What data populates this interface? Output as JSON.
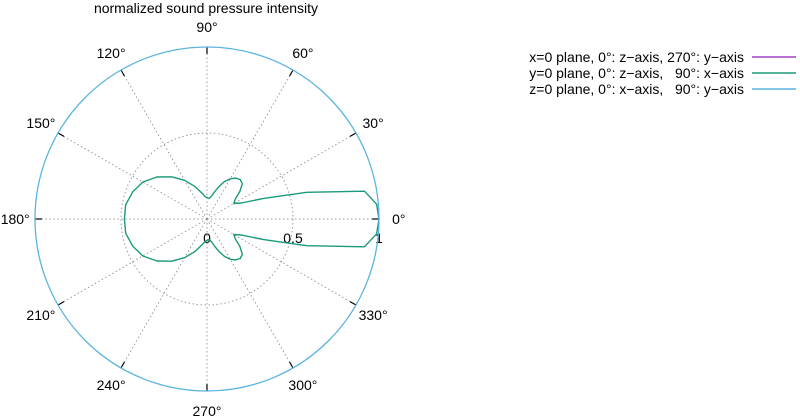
{
  "chart_data": {
    "type": "polar-line",
    "title": "normalized sound pressure intensity",
    "angle_unit": "degrees",
    "radial_range": [
      0,
      1
    ],
    "radial_ticks": [
      {
        "value": 0,
        "label": "0"
      },
      {
        "value": 0.5,
        "label": "0.5"
      },
      {
        "value": 1,
        "label": "1"
      }
    ],
    "angle_ticks": [
      {
        "angle": 0,
        "label": "0°"
      },
      {
        "angle": 30,
        "label": "30°"
      },
      {
        "angle": 60,
        "label": "60°"
      },
      {
        "angle": 90,
        "label": "90°"
      },
      {
        "angle": 120,
        "label": "120°"
      },
      {
        "angle": 150,
        "label": "150°"
      },
      {
        "angle": 180,
        "label": "180°"
      },
      {
        "angle": 210,
        "label": "210°"
      },
      {
        "angle": 240,
        "label": "240°"
      },
      {
        "angle": 270,
        "label": "270°"
      },
      {
        "angle": 300,
        "label": "300°"
      },
      {
        "angle": 330,
        "label": "330°"
      }
    ],
    "grid": true,
    "legend_position": "top-right",
    "series": [
      {
        "name": "x=0 plane, 0°: z−axis, 270°: y−axis",
        "color": "#a040c8",
        "visible_curve": false,
        "points": []
      },
      {
        "name": "y=0 plane, 0°: z−axis,   90°: x−axis",
        "color": "#1a9a7a",
        "visible_curve": true,
        "points": [
          {
            "angle": 0,
            "r": 1.0
          },
          {
            "angle": 5,
            "r": 0.99
          },
          {
            "angle": 10,
            "r": 0.93
          },
          {
            "angle": 15,
            "r": 0.6
          },
          {
            "angle": 20,
            "r": 0.35
          },
          {
            "angle": 25,
            "r": 0.22
          },
          {
            "angle": 30,
            "r": 0.18
          },
          {
            "angle": 35,
            "r": 0.2
          },
          {
            "angle": 40,
            "r": 0.25
          },
          {
            "angle": 45,
            "r": 0.29
          },
          {
            "angle": 50,
            "r": 0.3
          },
          {
            "angle": 55,
            "r": 0.29
          },
          {
            "angle": 60,
            "r": 0.27
          },
          {
            "angle": 65,
            "r": 0.24
          },
          {
            "angle": 70,
            "r": 0.2
          },
          {
            "angle": 75,
            "r": 0.16
          },
          {
            "angle": 80,
            "r": 0.13
          },
          {
            "angle": 85,
            "r": 0.12
          },
          {
            "angle": 90,
            "r": 0.125
          },
          {
            "angle": 95,
            "r": 0.13
          },
          {
            "angle": 100,
            "r": 0.15
          },
          {
            "angle": 110,
            "r": 0.2
          },
          {
            "angle": 120,
            "r": 0.26
          },
          {
            "angle": 130,
            "r": 0.32
          },
          {
            "angle": 140,
            "r": 0.38
          },
          {
            "angle": 150,
            "r": 0.43
          },
          {
            "angle": 160,
            "r": 0.46
          },
          {
            "angle": 170,
            "r": 0.48
          },
          {
            "angle": 180,
            "r": 0.48
          }
        ]
      },
      {
        "name": "z=0 plane, 0°: x−axis,   90°: y−axis",
        "color": "#5ab4e0",
        "visible_curve": true,
        "points": [
          {
            "angle": 0,
            "r": 1.0
          },
          {
            "angle": 90,
            "r": 1.0
          },
          {
            "angle": 180,
            "r": 1.0
          },
          {
            "angle": 270,
            "r": 1.0
          },
          {
            "angle": 360,
            "r": 1.0
          }
        ]
      }
    ]
  }
}
